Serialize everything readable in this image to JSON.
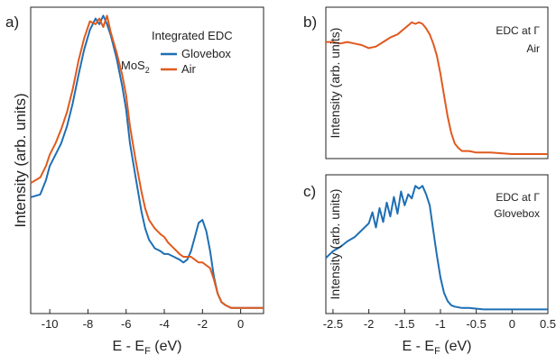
{
  "colors": {
    "glovebox": "#1f6fb4",
    "air": "#e05a1e",
    "axis": "#222222"
  },
  "chart_data": [
    {
      "panel_label": "a)",
      "type": "line",
      "title": "",
      "xlabel_main": "E - E",
      "xlabel_sub": "F",
      "xlabel_unit": " (eV)",
      "ylabel": "Intensity (arb. units)",
      "xlim": [
        -11,
        1.2
      ],
      "ylim": [
        0,
        1.08
      ],
      "xticks": [
        -10,
        -8,
        -6,
        -4,
        -2,
        0
      ],
      "xtick_labels": [
        "-10",
        "-8",
        "-6",
        "-4",
        "-2",
        "0"
      ],
      "legend_title": "Integrated EDC",
      "material_main": "MoS",
      "material_sub": "2",
      "legend_position": "top-right",
      "series": [
        {
          "name": "Glovebox",
          "color": "#1f6fb4",
          "x": [
            -11.0,
            -10.5,
            -10.2,
            -10.0,
            -9.7,
            -9.4,
            -9.1,
            -8.8,
            -8.5,
            -8.2,
            -7.9,
            -7.6,
            -7.4,
            -7.2,
            -7.0,
            -6.8,
            -6.5,
            -6.2,
            -6.0,
            -5.8,
            -5.5,
            -5.2,
            -5.0,
            -4.8,
            -4.5,
            -4.2,
            -4.0,
            -3.8,
            -3.5,
            -3.2,
            -3.0,
            -2.8,
            -2.6,
            -2.4,
            -2.2,
            -2.0,
            -1.8,
            -1.6,
            -1.4,
            -1.2,
            -1.0,
            -0.8,
            -0.5,
            0.0,
            0.5,
            1.2
          ],
          "y": [
            0.41,
            0.42,
            0.47,
            0.52,
            0.56,
            0.6,
            0.66,
            0.74,
            0.84,
            0.93,
            1.0,
            1.04,
            1.02,
            1.05,
            1.02,
            0.98,
            0.9,
            0.8,
            0.72,
            0.6,
            0.48,
            0.36,
            0.3,
            0.26,
            0.23,
            0.22,
            0.21,
            0.21,
            0.2,
            0.19,
            0.18,
            0.19,
            0.22,
            0.27,
            0.32,
            0.33,
            0.29,
            0.22,
            0.13,
            0.07,
            0.04,
            0.03,
            0.02,
            0.02,
            0.02,
            0.02
          ]
        },
        {
          "name": "Air",
          "color": "#e05a1e",
          "x": [
            -11.0,
            -10.5,
            -10.2,
            -10.0,
            -9.7,
            -9.4,
            -9.1,
            -8.8,
            -8.5,
            -8.2,
            -7.9,
            -7.6,
            -7.4,
            -7.2,
            -7.0,
            -6.8,
            -6.5,
            -6.2,
            -6.0,
            -5.8,
            -5.5,
            -5.2,
            -5.0,
            -4.8,
            -4.5,
            -4.2,
            -4.0,
            -3.8,
            -3.5,
            -3.2,
            -3.0,
            -2.8,
            -2.6,
            -2.4,
            -2.2,
            -2.0,
            -1.8,
            -1.6,
            -1.4,
            -1.2,
            -1.0,
            -0.8,
            -0.5,
            0.0,
            0.5,
            1.2
          ],
          "y": [
            0.46,
            0.48,
            0.52,
            0.56,
            0.6,
            0.65,
            0.71,
            0.79,
            0.89,
            0.97,
            1.03,
            1.02,
            1.04,
            1.01,
            1.05,
            0.99,
            0.92,
            0.84,
            0.77,
            0.66,
            0.54,
            0.43,
            0.37,
            0.33,
            0.3,
            0.28,
            0.27,
            0.25,
            0.23,
            0.21,
            0.2,
            0.2,
            0.2,
            0.19,
            0.18,
            0.18,
            0.17,
            0.16,
            0.12,
            0.07,
            0.04,
            0.03,
            0.02,
            0.02,
            0.02,
            0.02
          ]
        }
      ]
    },
    {
      "panel_label": "b)",
      "type": "line",
      "title": "",
      "xlabel_main": "",
      "ylabel": "Intensity (arb. units)",
      "xlim": [
        -2.6,
        0.5
      ],
      "ylim": [
        0,
        1.0
      ],
      "annotation_line1": "EDC at Γ",
      "annotation_line2": "Air",
      "series": [
        {
          "name": "",
          "color": "#e05a1e",
          "x": [
            -2.6,
            -2.5,
            -2.4,
            -2.3,
            -2.2,
            -2.1,
            -2.0,
            -1.9,
            -1.8,
            -1.7,
            -1.6,
            -1.5,
            -1.45,
            -1.4,
            -1.35,
            -1.3,
            -1.25,
            -1.2,
            -1.15,
            -1.1,
            -1.05,
            -1.0,
            -0.95,
            -0.9,
            -0.85,
            -0.8,
            -0.75,
            -0.7,
            -0.6,
            -0.5,
            -0.3,
            0.0,
            0.3,
            0.5
          ],
          "y": [
            0.77,
            0.77,
            0.76,
            0.77,
            0.76,
            0.75,
            0.73,
            0.74,
            0.77,
            0.8,
            0.82,
            0.86,
            0.88,
            0.9,
            0.89,
            0.9,
            0.89,
            0.86,
            0.82,
            0.76,
            0.68,
            0.56,
            0.42,
            0.28,
            0.17,
            0.1,
            0.07,
            0.05,
            0.05,
            0.04,
            0.04,
            0.03,
            0.03,
            0.03
          ]
        }
      ]
    },
    {
      "panel_label": "c)",
      "type": "line",
      "title": "",
      "xlabel_main": "E - E",
      "xlabel_sub": "F",
      "xlabel_unit": " (eV)",
      "ylabel": "Intensity (arb. units)",
      "xlim": [
        -2.6,
        0.5
      ],
      "ylim": [
        0,
        1.0
      ],
      "xticks": [
        -2.5,
        -2,
        -1.5,
        -1,
        -0.5,
        0,
        0.5
      ],
      "xtick_labels": [
        "-2.5",
        "-2",
        "-1.5",
        "-1",
        "-0.5",
        "0",
        "0.5"
      ],
      "annotation_line1": "EDC at Γ",
      "annotation_line2": "Glovebox",
      "series": [
        {
          "name": "",
          "color": "#1f6fb4",
          "x": [
            -2.6,
            -2.5,
            -2.4,
            -2.3,
            -2.2,
            -2.1,
            -2.0,
            -1.95,
            -1.9,
            -1.85,
            -1.8,
            -1.75,
            -1.7,
            -1.65,
            -1.6,
            -1.55,
            -1.5,
            -1.45,
            -1.4,
            -1.35,
            -1.3,
            -1.25,
            -1.2,
            -1.15,
            -1.1,
            -1.05,
            -1.0,
            -0.95,
            -0.9,
            -0.85,
            -0.8,
            -0.7,
            -0.6,
            -0.4,
            -0.2,
            0.0,
            0.3,
            0.5
          ],
          "y": [
            0.4,
            0.45,
            0.48,
            0.52,
            0.55,
            0.6,
            0.65,
            0.73,
            0.62,
            0.76,
            0.66,
            0.8,
            0.7,
            0.84,
            0.72,
            0.88,
            0.78,
            0.86,
            0.83,
            0.92,
            0.9,
            0.92,
            0.86,
            0.78,
            0.6,
            0.42,
            0.26,
            0.15,
            0.09,
            0.06,
            0.05,
            0.04,
            0.04,
            0.03,
            0.03,
            0.03,
            0.03,
            0.03
          ]
        }
      ]
    }
  ]
}
